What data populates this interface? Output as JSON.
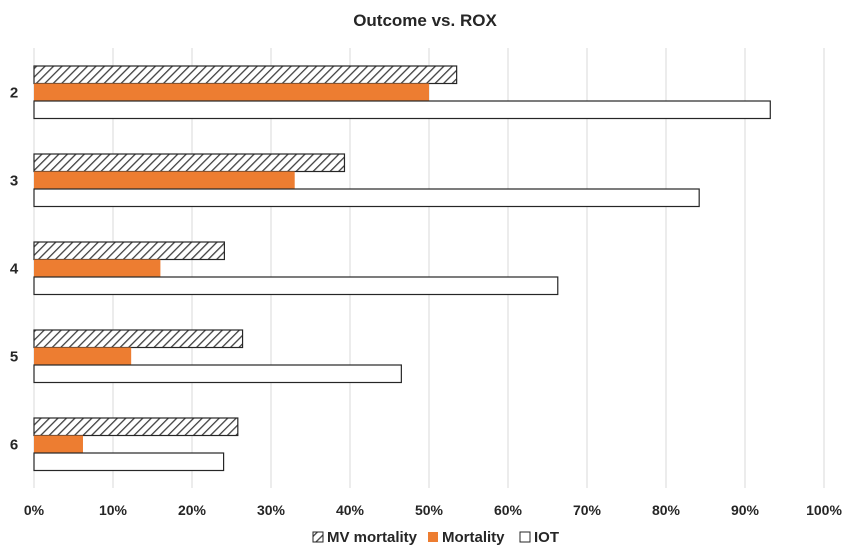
{
  "chart_data": {
    "type": "bar",
    "orientation": "horizontal",
    "title": "Outcome vs. ROX",
    "xlabel": "",
    "ylabel": "",
    "xlim": [
      0,
      100
    ],
    "x_tick_labels": [
      "0%",
      "10%",
      "20%",
      "30%",
      "40%",
      "50%",
      "60%",
      "70%",
      "80%",
      "90%",
      "100%"
    ],
    "categories": [
      "2",
      "3",
      "4",
      "5",
      "6"
    ],
    "series": [
      {
        "name": "MV mortality",
        "values": [
          53.5,
          39.3,
          24.1,
          26.4,
          25.8
        ],
        "fill": "hatched",
        "color": "#404040"
      },
      {
        "name": "Mortality",
        "values": [
          50.0,
          33.0,
          16.0,
          12.3,
          6.2
        ],
        "fill": "solid",
        "color": "#ED7D31"
      },
      {
        "name": "IOT",
        "values": [
          93.2,
          84.2,
          66.3,
          46.5,
          24.0
        ],
        "fill": "outline",
        "color": "#ffffff"
      }
    ],
    "grid": true,
    "legend_position": "bottom"
  }
}
